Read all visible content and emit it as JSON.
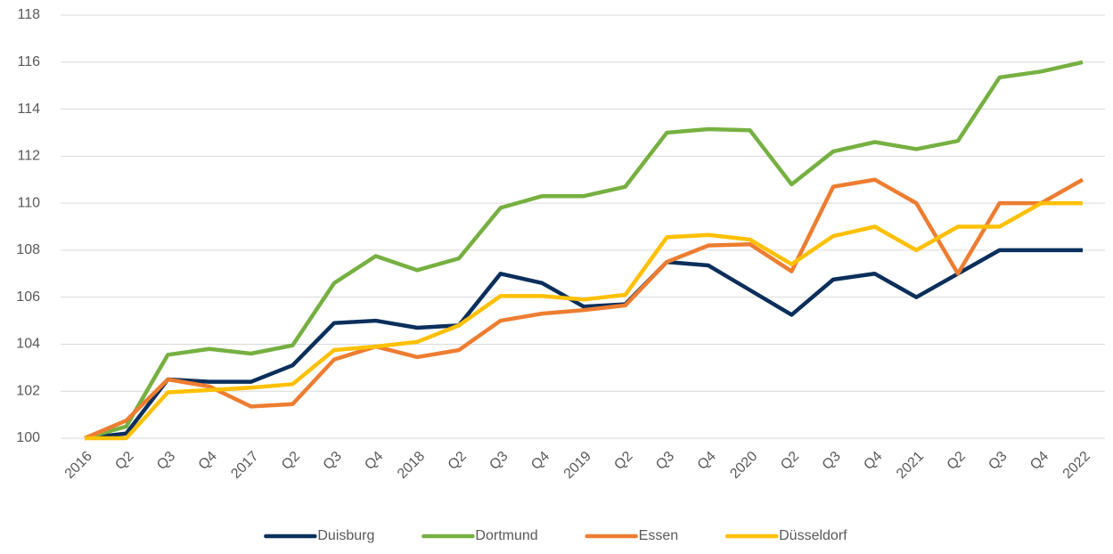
{
  "chart_data": {
    "type": "line",
    "categories": [
      "2016",
      "Q2",
      "Q3",
      "Q4",
      "2017",
      "Q2",
      "Q3",
      "Q4",
      "2018",
      "Q2",
      "Q3",
      "Q4",
      "2019",
      "Q2",
      "Q3",
      "Q4",
      "2020",
      "Q2",
      "Q3",
      "Q4",
      "2021",
      "Q2",
      "Q3",
      "Q4",
      "2022"
    ],
    "series": [
      {
        "name": "Duisburg",
        "color": "#0b2f5b",
        "values": [
          100,
          100.2,
          102.5,
          102.4,
          102.4,
          103.1,
          104.9,
          105.0,
          104.7,
          104.8,
          107.0,
          106.6,
          105.6,
          105.7,
          107.5,
          107.35,
          106.3,
          105.25,
          106.75,
          107.0,
          106.0,
          107.0,
          108.0,
          108.0,
          108.0
        ]
      },
      {
        "name": "Dortmund",
        "color": "#76b041",
        "values": [
          100,
          100.5,
          103.55,
          103.8,
          103.6,
          103.95,
          106.6,
          107.75,
          107.15,
          107.65,
          109.8,
          110.3,
          110.3,
          110.7,
          113.0,
          113.15,
          113.1,
          110.8,
          112.2,
          112.6,
          112.3,
          112.65,
          115.35,
          115.6,
          116.0
        ]
      },
      {
        "name": "Essen",
        "color": "#ed7d31",
        "values": [
          100,
          100.75,
          102.5,
          102.2,
          101.35,
          101.45,
          103.35,
          103.9,
          103.45,
          103.75,
          105.0,
          105.3,
          105.45,
          105.65,
          107.5,
          108.2,
          108.25,
          107.1,
          110.7,
          111.0,
          110.0,
          107.0,
          110.0,
          110.0,
          111.0
        ]
      },
      {
        "name": "Düsseldorf",
        "color": "#ffc000",
        "values": [
          100,
          100.0,
          101.95,
          102.05,
          102.15,
          102.3,
          103.75,
          103.9,
          104.1,
          104.8,
          106.05,
          106.05,
          105.9,
          106.1,
          108.55,
          108.65,
          108.45,
          107.4,
          108.6,
          109.0,
          108.0,
          109.0,
          109.0,
          110.0,
          110.0
        ]
      }
    ],
    "ylim": [
      100,
      118
    ],
    "yticks": [
      100,
      102,
      104,
      106,
      108,
      110,
      112,
      114,
      116,
      118
    ],
    "grid": true,
    "legend": "bottom"
  }
}
